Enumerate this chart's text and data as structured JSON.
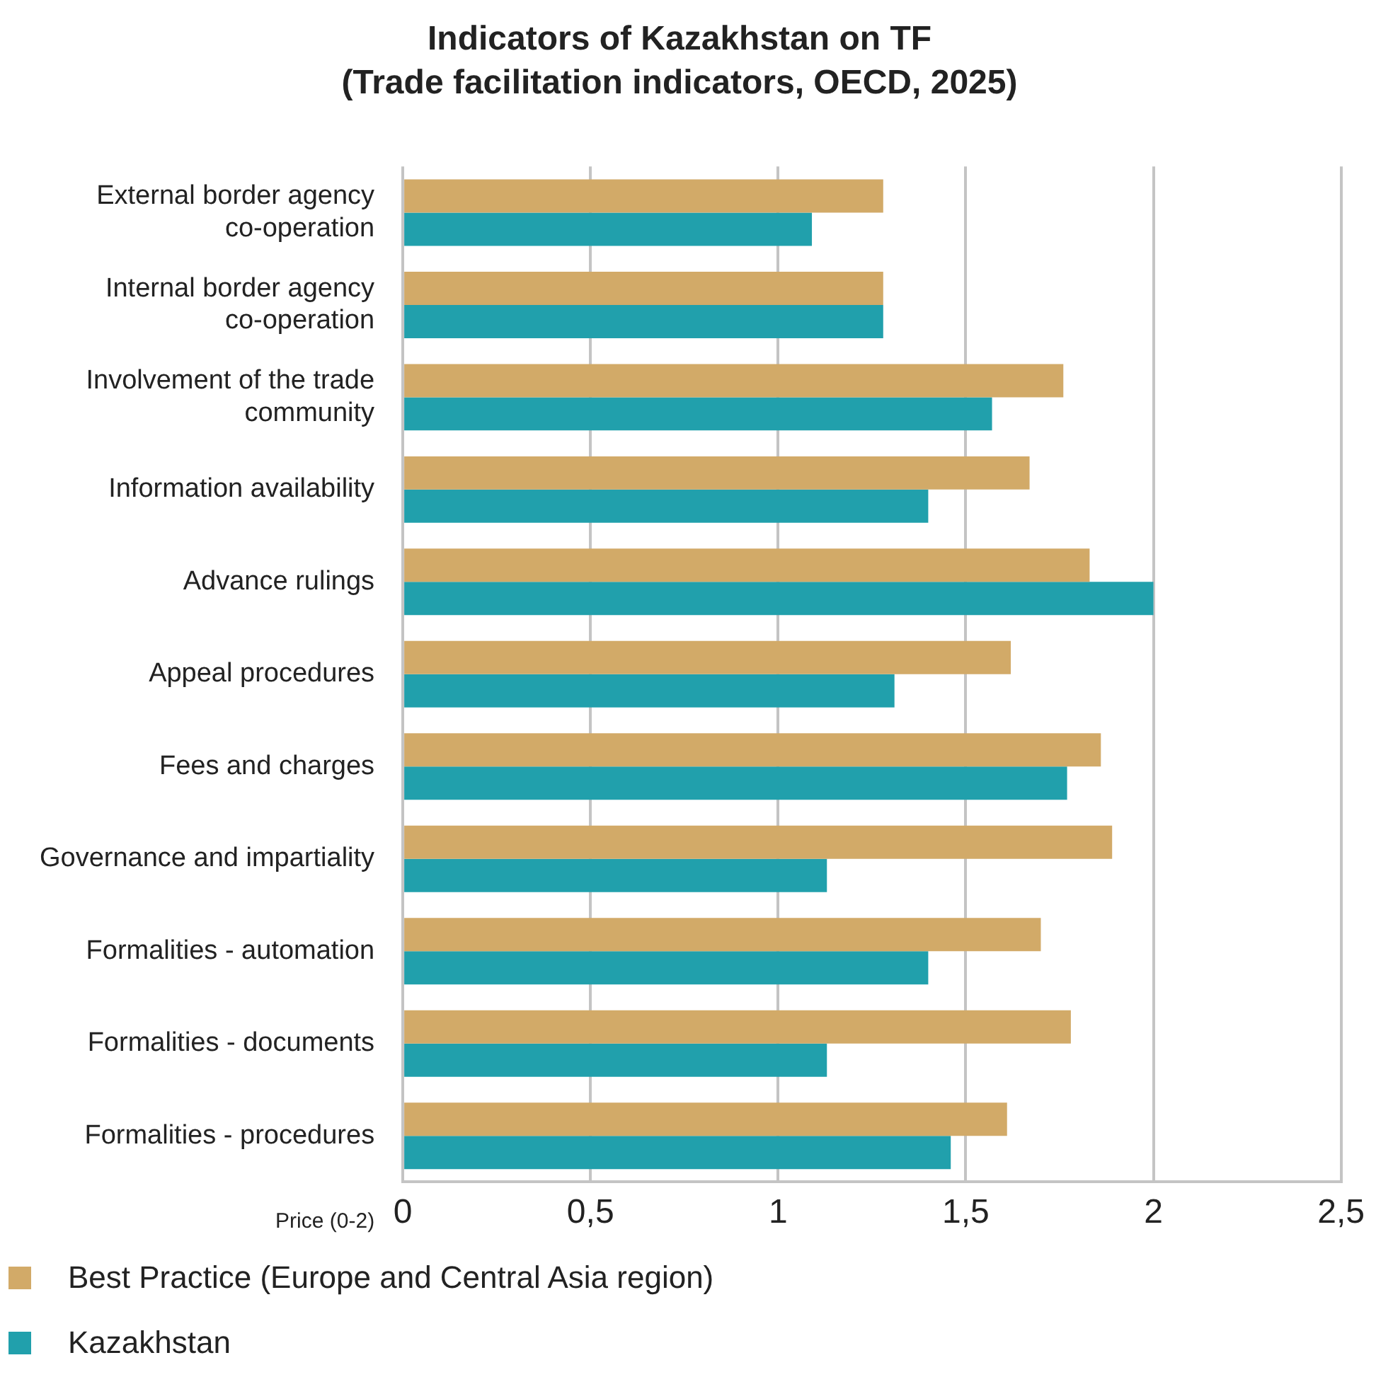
{
  "chart_data": {
    "type": "bar",
    "orientation": "horizontal",
    "title": "Indicators of Kazakhstan on TF",
    "subtitle": "(Trade facilitation indicators, OECD, 2025)",
    "xlabel": "Price (0-2)",
    "categories": [
      "External border agency co-operation",
      "Internal border agency co-operation",
      "Involvement of the trade community",
      "Information availability",
      "Advance rulings",
      "Appeal procedures",
      "Fees and charges",
      "Governance and impartiality",
      "Formalities - automation",
      "Formalities - documents",
      "Formalities - procedures"
    ],
    "series": [
      {
        "name": "Best Practice (Europe and Central Asia region)",
        "color": "#d2aa68",
        "values": [
          1.28,
          1.28,
          1.76,
          1.67,
          1.83,
          1.62,
          1.86,
          1.89,
          1.7,
          1.78,
          1.61
        ]
      },
      {
        "name": "Kazakhstan",
        "color": "#21a0ac",
        "values": [
          1.09,
          1.28,
          1.57,
          1.4,
          2.0,
          1.31,
          1.77,
          1.13,
          1.4,
          1.13,
          1.46
        ]
      }
    ],
    "xlim": [
      0,
      2.5
    ],
    "xticks": [
      0,
      {
        "value": 0.5,
        "label": "0,5"
      },
      1,
      {
        "value": 1.5,
        "label": "1,5"
      },
      2,
      {
        "value": 2.5,
        "label": "2,5"
      }
    ],
    "grid": "x",
    "legend": "bottom left"
  }
}
